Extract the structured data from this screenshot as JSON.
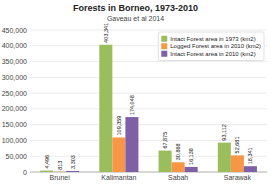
{
  "chart_data": {
    "type": "bar",
    "title": "Forests in Borneo, 1973-2010",
    "subtitle": "Gaveau et al 2014",
    "categories": [
      "Brunei",
      "Kalimantan",
      "Sabah",
      "Sarawak"
    ],
    "series": [
      {
        "name": "Intact Forest area in 1973 (km2)",
        "color": "#9abe5c",
        "values": [
          4496,
          403341,
          67875,
          93112
        ],
        "value_labels": [
          "4,496",
          "403,341",
          "67,875",
          "93,112"
        ]
      },
      {
        "name": "Logged Forest area in 2010 (km2)",
        "color": "#f79646",
        "values": [
          813,
          109359,
          30868,
          52681
        ],
        "value_labels": [
          "813",
          "109,359",
          "30,868",
          "52,681"
        ]
      },
      {
        "name": "Intact Forest area in 2010 (km2)",
        "color": "#7f5fa6",
        "values": [
          3303,
          174048,
          16138,
          18341
        ],
        "value_labels": [
          "3,303",
          "174,048",
          "16,138",
          "18,341"
        ]
      }
    ],
    "ylim": [
      0,
      450000
    ],
    "yticks": [
      0,
      {
        "value": 50000,
        "label": "50,000"
      },
      {
        "value": 100000,
        "label": "100,000"
      },
      {
        "value": 150000,
        "label": "150,000"
      },
      {
        "value": 200000,
        "label": "200,000"
      },
      {
        "value": 250000,
        "label": "250,000"
      },
      {
        "value": 300000,
        "label": "300,000"
      },
      {
        "value": 350000,
        "label": "350,000"
      },
      {
        "value": 400000,
        "label": "400,000"
      },
      {
        "value": 450000,
        "label": "450,000"
      }
    ],
    "grid": true,
    "legend": "upper right",
    "data_labels": true
  }
}
